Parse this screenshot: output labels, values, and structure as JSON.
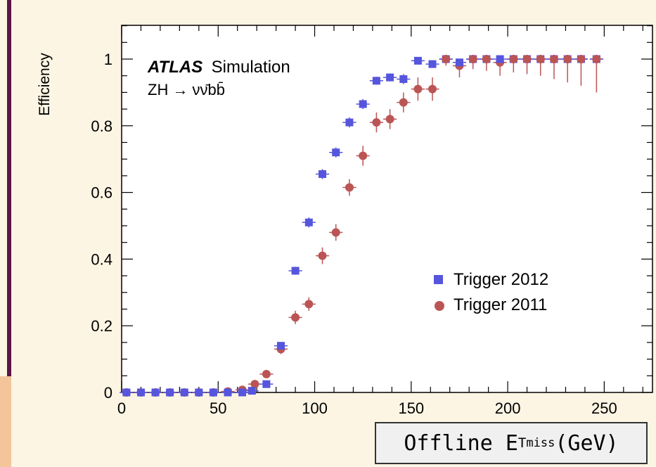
{
  "chart_data": {
    "type": "scatter",
    "title": "",
    "ylabel": "Efficiency",
    "xlim": [
      0,
      275
    ],
    "ylim": [
      0,
      1.1
    ],
    "x_ticks": [
      "0",
      "50",
      "100",
      "150",
      "200",
      "250"
    ],
    "y_ticks": [
      "0",
      "0.2",
      "0.4",
      "0.6",
      "0.8",
      "1"
    ],
    "annotation": {
      "experiment": "ATLAS",
      "label": "Simulation",
      "process": "ZH → νν̄bb̄"
    },
    "xlabel": {
      "prefix": "Offline E",
      "subscript": "T",
      "superscript": "miss",
      "suffix": " (GeV)"
    },
    "legend_placement": "center-right",
    "series": [
      {
        "name": "Trigger 2012",
        "marker": "square",
        "color": "#5555dd",
        "points": [
          [
            2.5,
            0.0
          ],
          [
            10,
            0.0
          ],
          [
            17.5,
            0.0
          ],
          [
            25,
            0.0
          ],
          [
            32.5,
            0.0
          ],
          [
            40,
            0.0
          ],
          [
            47.5,
            0.0
          ],
          [
            55,
            0.0
          ],
          [
            62.5,
            0.0
          ],
          [
            67.5,
            0.005
          ],
          [
            75,
            0.025
          ],
          [
            82.5,
            0.14
          ],
          [
            90,
            0.365
          ],
          [
            97,
            0.51
          ],
          [
            104,
            0.655
          ],
          [
            111,
            0.72
          ],
          [
            118,
            0.81
          ],
          [
            125,
            0.865
          ],
          [
            132,
            0.935
          ],
          [
            139,
            0.945
          ],
          [
            146,
            0.94
          ],
          [
            153.5,
            0.995
          ],
          [
            161,
            0.985
          ],
          [
            168,
            1.0
          ],
          [
            175,
            0.99
          ],
          [
            182,
            1.0
          ],
          [
            189,
            1.0
          ],
          [
            196,
            1.0
          ],
          [
            203,
            1.0
          ],
          [
            210,
            1.0
          ],
          [
            217,
            1.0
          ],
          [
            224,
            1.0
          ],
          [
            231,
            1.0
          ],
          [
            238,
            1.0
          ],
          [
            246,
            1.0
          ]
        ],
        "errors": [
          0,
          0,
          0,
          0,
          0,
          0,
          0,
          0,
          0,
          0.003,
          0.005,
          0.01,
          0.012,
          0.015,
          0.015,
          0.015,
          0.015,
          0.015,
          0.012,
          0.012,
          0.015,
          0.01,
          0.01,
          0.005,
          0.01,
          0.005,
          0.005,
          0.005,
          0.005,
          0.005,
          0.005,
          0.005,
          0.005,
          0.005,
          0.005
        ]
      },
      {
        "name": "Trigger 2011",
        "marker": "circle",
        "color": "#bb5555",
        "points": [
          [
            2.5,
            0.0
          ],
          [
            10,
            0.0
          ],
          [
            17.5,
            0.0
          ],
          [
            25,
            0.0
          ],
          [
            32.5,
            0.0
          ],
          [
            40,
            0.0
          ],
          [
            47.5,
            0.0
          ],
          [
            55,
            0.003
          ],
          [
            62.5,
            0.008
          ],
          [
            69,
            0.025
          ],
          [
            75,
            0.055
          ],
          [
            82.5,
            0.13
          ],
          [
            90,
            0.225
          ],
          [
            97,
            0.265
          ],
          [
            104,
            0.41
          ],
          [
            111,
            0.48
          ],
          [
            118,
            0.615
          ],
          [
            125,
            0.71
          ],
          [
            132,
            0.81
          ],
          [
            139,
            0.82
          ],
          [
            146,
            0.87
          ],
          [
            153.5,
            0.91
          ],
          [
            161,
            0.91
          ],
          [
            168,
            1.0
          ],
          [
            175,
            0.98
          ],
          [
            182,
            1.0
          ],
          [
            189,
            1.0
          ],
          [
            196,
            0.99
          ],
          [
            203,
            1.0
          ],
          [
            210,
            1.0
          ],
          [
            217,
            1.0
          ],
          [
            224,
            1.0
          ],
          [
            231,
            1.0
          ],
          [
            238,
            1.0
          ],
          [
            246,
            1.0
          ]
        ],
        "errors_low": [
          0,
          0,
          0,
          0,
          0,
          0,
          0,
          0.005,
          0.005,
          0.01,
          0.01,
          0.015,
          0.02,
          0.02,
          0.025,
          0.025,
          0.025,
          0.03,
          0.03,
          0.03,
          0.03,
          0.035,
          0.035,
          0.02,
          0.035,
          0.03,
          0.035,
          0.04,
          0.04,
          0.045,
          0.05,
          0.06,
          0.07,
          0.08,
          0.1
        ],
        "errors_high": [
          0,
          0,
          0,
          0,
          0,
          0,
          0,
          0.005,
          0.005,
          0.01,
          0.01,
          0.015,
          0.02,
          0.02,
          0.025,
          0.025,
          0.025,
          0.03,
          0.03,
          0.03,
          0.03,
          0.035,
          0.035,
          0.0,
          0.02,
          0.0,
          0.0,
          0.01,
          0.0,
          0.0,
          0.0,
          0.0,
          0.0,
          0.0,
          0.0
        ]
      }
    ]
  }
}
